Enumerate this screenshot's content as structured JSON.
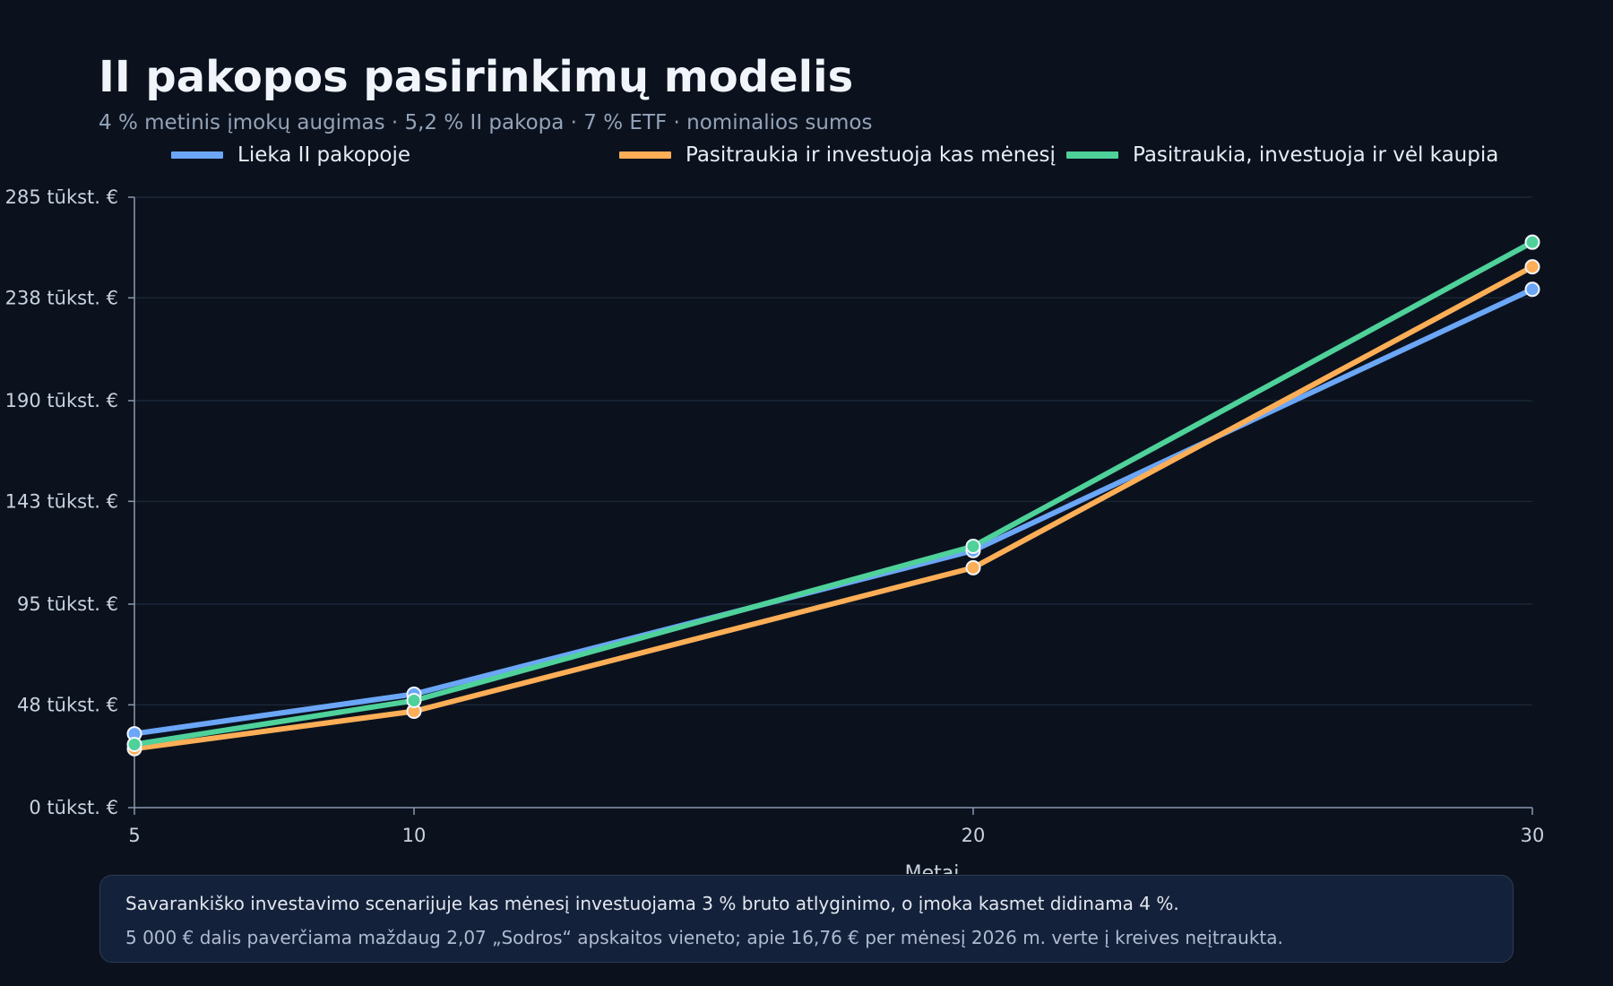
{
  "chart_data": {
    "type": "line",
    "title": "II pakopos pasirinkimų modelis",
    "subtitle": "4 % metinis įmokų augimas · 5,2 % II pakopa · 7 % ETF · nominalios sumos",
    "xlabel": "Metai",
    "ylabel": "",
    "x": [
      5,
      10,
      20,
      30
    ],
    "x_tick_labels": [
      "5",
      "10",
      "20",
      "30"
    ],
    "ylim": [
      0,
      285
    ],
    "y_ticks": [
      0,
      48,
      95,
      143,
      190,
      238,
      285
    ],
    "y_tick_labels": [
      "0 tūkst. €",
      "48 tūkst. €",
      "95 tūkst. €",
      "143 tūkst. €",
      "190 tūkst. €",
      "238 tūkst. €",
      "285 tūkst. €"
    ],
    "grid": true,
    "legend_position": "top",
    "series": [
      {
        "name": "Lieka II pakopoje",
        "color": "#6ba6f7",
        "values": [
          34.5,
          53,
          120,
          242
        ]
      },
      {
        "name": "Pasitraukia ir investuoja kas mėnesį",
        "color": "#fdae56",
        "values": [
          27.5,
          45,
          112,
          252.5
        ]
      },
      {
        "name": "Pasitraukia, investuoja ir vėl kaupia",
        "color": "#4fd19a",
        "values": [
          29.5,
          50,
          122,
          264
        ]
      }
    ]
  },
  "note": {
    "line1": "Savarankiško investavimo scenarijuje kas mėnesį investuojama 3 % bruto atlyginimo, o įmoka kasmet didinama 4 %.",
    "line2": "5 000 € dalis paverčiama maždaug 2,07 „Sodros“ apskaitos vieneto; apie 16,76 € per mėnesį 2026 m. verte į kreives neįtraukta."
  }
}
